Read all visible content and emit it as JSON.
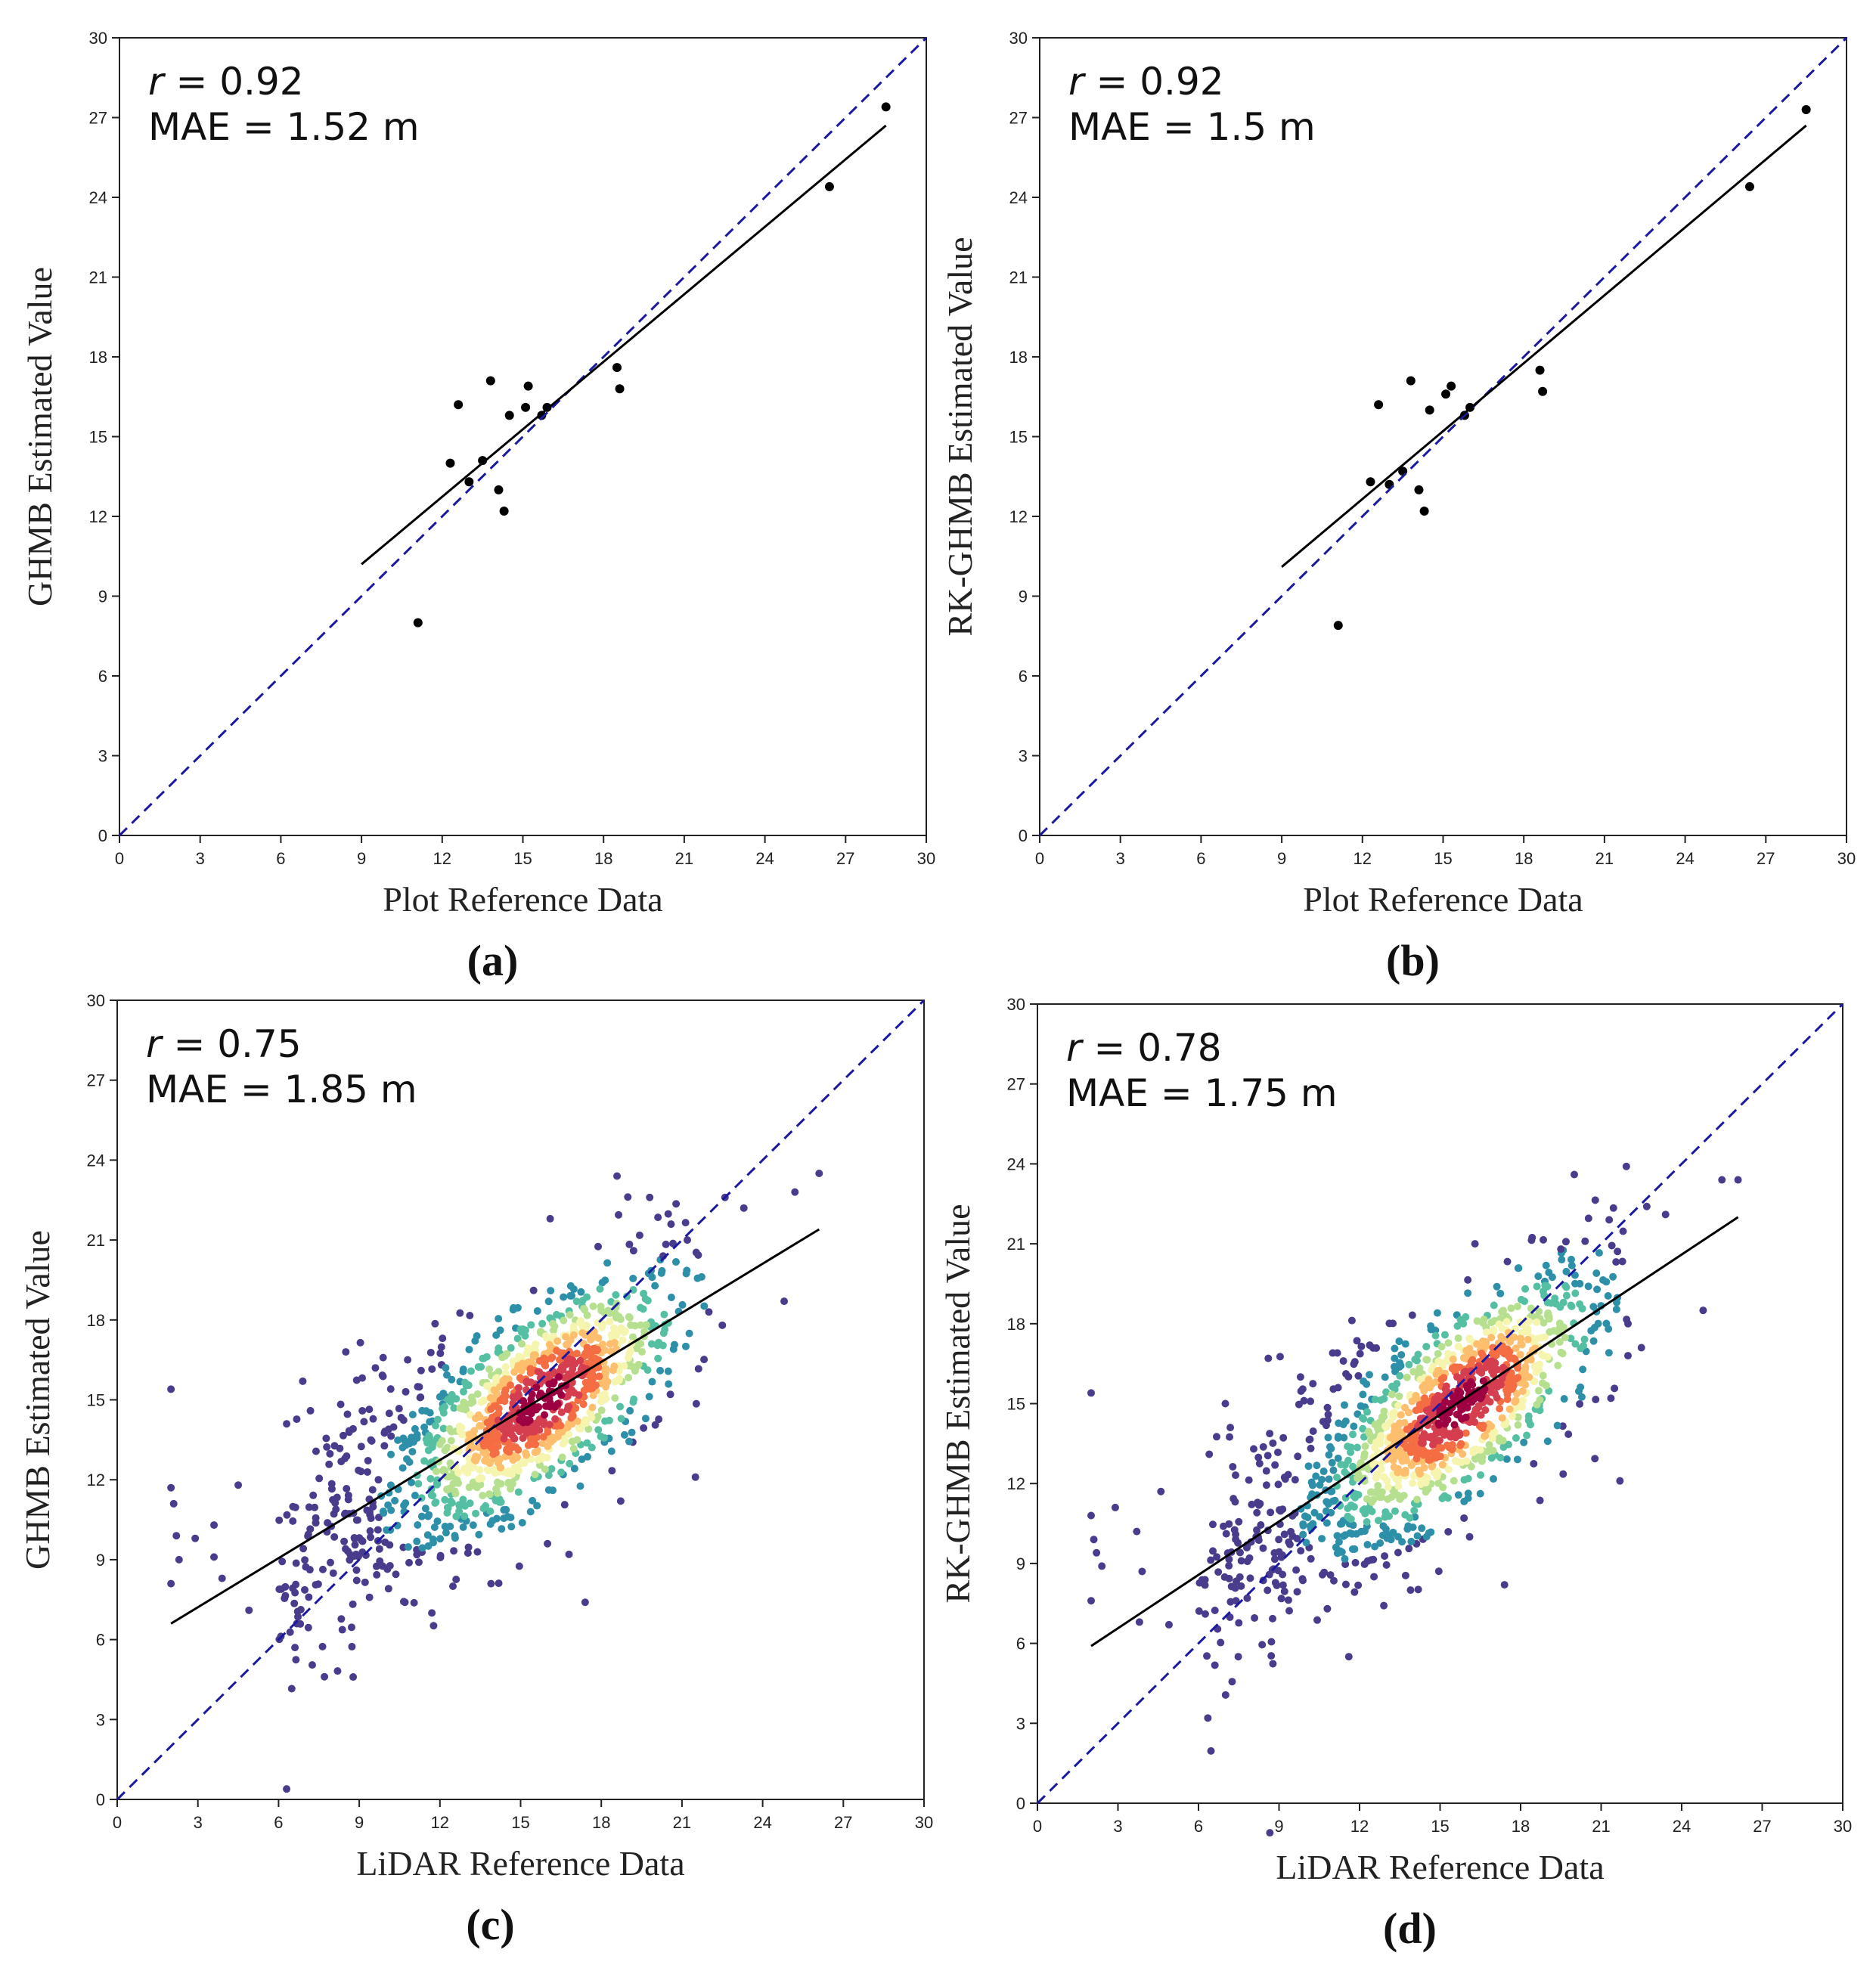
{
  "colors": {
    "identity_line": "#1a1aa0",
    "fit_line": "#000000",
    "point_black": "#000000",
    "density_scale": [
      "#4a3c8c",
      "#2e8fa8",
      "#55bfa3",
      "#b6e08f",
      "#f5f5b0",
      "#fdbe6e",
      "#f46d43",
      "#d53e4f",
      "#9e0142"
    ]
  },
  "chart_data": [
    {
      "panel": "(a)",
      "type": "scatter",
      "xlabel": "Plot Reference Data",
      "ylabel": "GHMB Estimated Value",
      "xlim": [
        0,
        30
      ],
      "ylim": [
        0,
        30
      ],
      "xticks": [
        "0",
        "3",
        "6",
        "9",
        "12",
        "15",
        "18",
        "21",
        "24",
        "27",
        "30"
      ],
      "yticks": [
        "0",
        "3",
        "6",
        "9",
        "12",
        "15",
        "18",
        "21",
        "24",
        "27",
        "30"
      ],
      "stat_r": "r = 0.92",
      "stat_mae": "MAE = 1.52 m",
      "points": [
        [
          11.1,
          8.0
        ],
        [
          12.3,
          14.0
        ],
        [
          12.6,
          16.2
        ],
        [
          13.0,
          13.3
        ],
        [
          13.5,
          14.1
        ],
        [
          13.8,
          17.1
        ],
        [
          14.1,
          13.0
        ],
        [
          14.3,
          12.2
        ],
        [
          14.5,
          15.8
        ],
        [
          15.1,
          16.1
        ],
        [
          15.2,
          16.9
        ],
        [
          15.7,
          15.8
        ],
        [
          15.9,
          16.1
        ],
        [
          18.5,
          17.6
        ],
        [
          18.6,
          16.8
        ],
        [
          26.4,
          24.4
        ],
        [
          28.5,
          27.4
        ]
      ],
      "fit_line": [
        [
          9.0,
          10.2
        ],
        [
          28.5,
          26.7
        ]
      ],
      "identity_line": [
        [
          0,
          0
        ],
        [
          30,
          30
        ]
      ],
      "colored": false
    },
    {
      "panel": "(b)",
      "type": "scatter",
      "xlabel": "Plot Reference Data",
      "ylabel": "RK-GHMB Estimated Value",
      "xlim": [
        0,
        30
      ],
      "ylim": [
        0,
        30
      ],
      "xticks": [
        "0",
        "3",
        "6",
        "9",
        "12",
        "15",
        "18",
        "21",
        "24",
        "27",
        "30"
      ],
      "yticks": [
        "0",
        "3",
        "6",
        "9",
        "12",
        "15",
        "18",
        "21",
        "24",
        "27",
        "30"
      ],
      "stat_r": "r = 0.92",
      "stat_mae": "MAE = 1.5 m",
      "points": [
        [
          11.1,
          7.9
        ],
        [
          12.3,
          13.3
        ],
        [
          12.6,
          16.2
        ],
        [
          13.0,
          13.2
        ],
        [
          13.5,
          13.7
        ],
        [
          13.8,
          17.1
        ],
        [
          14.1,
          13.0
        ],
        [
          14.3,
          12.2
        ],
        [
          14.5,
          16.0
        ],
        [
          15.1,
          16.6
        ],
        [
          15.3,
          16.9
        ],
        [
          15.8,
          15.8
        ],
        [
          16.0,
          16.1
        ],
        [
          18.6,
          17.5
        ],
        [
          18.7,
          16.7
        ],
        [
          26.4,
          24.4
        ],
        [
          28.5,
          27.3
        ]
      ],
      "fit_line": [
        [
          9.0,
          10.1
        ],
        [
          28.5,
          26.7
        ]
      ],
      "identity_line": [
        [
          0,
          0
        ],
        [
          30,
          30
        ]
      ],
      "colored": false
    },
    {
      "panel": "(c)",
      "type": "scatter",
      "xlabel": "LiDAR Reference Data",
      "ylabel": "GHMB Estimated Value",
      "xlim": [
        0,
        30
      ],
      "ylim": [
        0,
        30
      ],
      "xticks": [
        "0",
        "3",
        "6",
        "9",
        "12",
        "15",
        "18",
        "21",
        "24",
        "27",
        "30"
      ],
      "yticks": [
        "0",
        "3",
        "6",
        "9",
        "12",
        "15",
        "18",
        "21",
        "24",
        "27",
        "30"
      ],
      "stat_r": "r = 0.75",
      "stat_mae": "MAE = 1.85 m",
      "points": [
        [
          2.0,
          15.4
        ],
        [
          2.0,
          11.7
        ],
        [
          2.1,
          11.1
        ],
        [
          2.0,
          8.1
        ],
        [
          2.3,
          9.0
        ],
        [
          2.2,
          9.9
        ],
        [
          2.9,
          9.8
        ],
        [
          3.6,
          10.3
        ],
        [
          3.6,
          9.1
        ],
        [
          3.9,
          8.3
        ],
        [
          4.5,
          11.8
        ],
        [
          4.9,
          7.1
        ],
        [
          6.3,
          14.1
        ],
        [
          6.9,
          15.7
        ],
        [
          8.5,
          16.8
        ],
        [
          9.6,
          16.2
        ],
        [
          10.8,
          16.5
        ],
        [
          11.3,
          16.1
        ],
        [
          11.7,
          7.0
        ],
        [
          10.7,
          7.4
        ],
        [
          13.9,
          8.1
        ],
        [
          16.0,
          9.6
        ],
        [
          16.8,
          9.2
        ],
        [
          17.4,
          7.4
        ],
        [
          21.5,
          12.1
        ],
        [
          22.0,
          18.3
        ],
        [
          22.5,
          17.8
        ],
        [
          22.6,
          22.6
        ],
        [
          23.3,
          22.2
        ],
        [
          24.8,
          18.7
        ],
        [
          25.2,
          22.8
        ],
        [
          26.1,
          23.5
        ],
        [
          16.1,
          21.8
        ],
        [
          19.8,
          22.6
        ],
        [
          21.2,
          21.0
        ],
        [
          20.3,
          20.4
        ],
        [
          19.2,
          20.6
        ]
      ],
      "fit_line": [
        [
          2.0,
          6.6
        ],
        [
          26.1,
          21.4
        ]
      ],
      "identity_line": [
        [
          0,
          0
        ],
        [
          30,
          30
        ]
      ],
      "colored": true
    },
    {
      "panel": "(d)",
      "type": "scatter",
      "xlabel": "LiDAR Reference Data",
      "ylabel": "RK-GHMB Estimated Value",
      "xlim": [
        0,
        30
      ],
      "ylim": [
        0,
        30
      ],
      "xticks": [
        "0",
        "3",
        "6",
        "9",
        "12",
        "15",
        "18",
        "21",
        "24",
        "27",
        "30"
      ],
      "yticks": [
        "0",
        "3",
        "6",
        "9",
        "12",
        "15",
        "18",
        "21",
        "24",
        "27",
        "30"
      ],
      "stat_r": "r = 0.78",
      "stat_mae": "MAE = 1.75 m",
      "points": [
        [
          2.0,
          15.4
        ],
        [
          2.0,
          10.8
        ],
        [
          2.1,
          9.9
        ],
        [
          2.2,
          9.4
        ],
        [
          2.4,
          8.9
        ],
        [
          2.0,
          7.6
        ],
        [
          2.9,
          11.1
        ],
        [
          3.7,
          10.2
        ],
        [
          3.9,
          8.7
        ],
        [
          3.8,
          6.8
        ],
        [
          4.6,
          11.7
        ],
        [
          4.9,
          6.7
        ],
        [
          6.4,
          13.1
        ],
        [
          7.0,
          15.0
        ],
        [
          8.6,
          16.7
        ],
        [
          9.8,
          16.0
        ],
        [
          11.0,
          16.9
        ],
        [
          11.2,
          15.6
        ],
        [
          11.6,
          5.5
        ],
        [
          10.8,
          7.3
        ],
        [
          13.9,
          8.0
        ],
        [
          16.1,
          10.0
        ],
        [
          17.4,
          8.2
        ],
        [
          21.7,
          12.1
        ],
        [
          22.0,
          18.0
        ],
        [
          22.5,
          17.1
        ],
        [
          22.7,
          22.4
        ],
        [
          23.4,
          22.1
        ],
        [
          24.8,
          18.5
        ],
        [
          25.5,
          23.4
        ],
        [
          26.1,
          23.4
        ],
        [
          16.3,
          21.0
        ],
        [
          20.0,
          23.6
        ],
        [
          21.3,
          21.9
        ],
        [
          19.5,
          20.8
        ]
      ],
      "fit_line": [
        [
          2.0,
          5.9
        ],
        [
          26.1,
          22.0
        ]
      ],
      "identity_line": [
        [
          0,
          0
        ],
        [
          30,
          30
        ]
      ],
      "colored": true
    }
  ]
}
